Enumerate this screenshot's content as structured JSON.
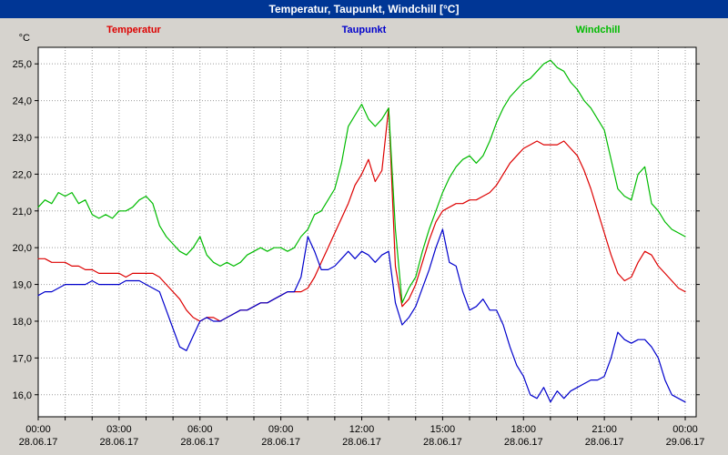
{
  "window": {
    "title": "Temperatur, Taupunkt, Windchill [°C]"
  },
  "legend": [
    {
      "label": "Temperatur",
      "color": "#dd0000"
    },
    {
      "label": "Taupunkt",
      "color": "#0000cc"
    },
    {
      "label": "Windchill",
      "color": "#00bb00"
    }
  ],
  "chart_data": {
    "type": "line",
    "title": "Temperatur, Taupunkt, Windchill [°C]",
    "y_unit": "°C",
    "ylim": [
      15.4,
      25.45
    ],
    "grid": "dotted, every 1 °C horizontal and every 1 hour vertical",
    "x_step_hours": 0.25,
    "x_range_hours": [
      0,
      24
    ],
    "y_ticks": [
      {
        "value": 16,
        "label": "16,0"
      },
      {
        "value": 17,
        "label": "17,0"
      },
      {
        "value": 18,
        "label": "18,0"
      },
      {
        "value": 19,
        "label": "19,0"
      },
      {
        "value": 20,
        "label": "20,0"
      },
      {
        "value": 21,
        "label": "21,0"
      },
      {
        "value": 22,
        "label": "22,0"
      },
      {
        "value": 23,
        "label": "23,0"
      },
      {
        "value": 24,
        "label": "24,0"
      },
      {
        "value": 25,
        "label": "25,0"
      }
    ],
    "x_ticks": [
      {
        "hour": 0,
        "time": "00:00",
        "date": "28.06.17"
      },
      {
        "hour": 3,
        "time": "03:00",
        "date": "28.06.17"
      },
      {
        "hour": 6,
        "time": "06:00",
        "date": "28.06.17"
      },
      {
        "hour": 9,
        "time": "09:00",
        "date": "28.06.17"
      },
      {
        "hour": 12,
        "time": "12:00",
        "date": "28.06.17"
      },
      {
        "hour": 15,
        "time": "15:00",
        "date": "28.06.17"
      },
      {
        "hour": 18,
        "time": "18:00",
        "date": "28.06.17"
      },
      {
        "hour": 21,
        "time": "21:00",
        "date": "28.06.17"
      },
      {
        "hour": 24,
        "time": "00:00",
        "date": "29.06.17"
      }
    ],
    "series": [
      {
        "name": "Temperatur",
        "color": "#dd0000",
        "values": [
          19.7,
          19.7,
          19.6,
          19.6,
          19.6,
          19.5,
          19.5,
          19.4,
          19.4,
          19.3,
          19.3,
          19.3,
          19.3,
          19.2,
          19.3,
          19.3,
          19.3,
          19.3,
          19.2,
          19.0,
          18.8,
          18.6,
          18.3,
          18.1,
          18.0,
          18.1,
          18.1,
          18.0,
          18.1,
          18.2,
          18.3,
          18.3,
          18.4,
          18.5,
          18.5,
          18.6,
          18.7,
          18.8,
          18.8,
          18.8,
          18.9,
          19.2,
          19.6,
          20.0,
          20.4,
          20.8,
          21.2,
          21.7,
          22.0,
          22.4,
          21.8,
          22.1,
          23.8,
          19.5,
          18.4,
          18.6,
          19.0,
          19.6,
          20.2,
          20.7,
          21.0,
          21.1,
          21.2,
          21.2,
          21.3,
          21.3,
          21.4,
          21.5,
          21.7,
          22.0,
          22.3,
          22.5,
          22.7,
          22.8,
          22.9,
          22.8,
          22.8,
          22.8,
          22.9,
          22.7,
          22.5,
          22.1,
          21.6,
          21.0,
          20.4,
          19.8,
          19.3,
          19.1,
          19.2,
          19.6,
          19.9,
          19.8,
          19.5,
          19.3,
          19.1,
          18.9,
          18.8
        ]
      },
      {
        "name": "Taupunkt",
        "color": "#0000cc",
        "values": [
          18.7,
          18.8,
          18.8,
          18.9,
          19.0,
          19.0,
          19.0,
          19.0,
          19.1,
          19.0,
          19.0,
          19.0,
          19.0,
          19.1,
          19.1,
          19.1,
          19.0,
          18.9,
          18.8,
          18.3,
          17.8,
          17.3,
          17.2,
          17.6,
          18.0,
          18.1,
          18.0,
          18.0,
          18.1,
          18.2,
          18.3,
          18.3,
          18.4,
          18.5,
          18.5,
          18.6,
          18.7,
          18.8,
          18.8,
          19.2,
          20.3,
          19.9,
          19.4,
          19.4,
          19.5,
          19.7,
          19.9,
          19.7,
          19.9,
          19.8,
          19.6,
          19.8,
          19.9,
          18.5,
          17.9,
          18.1,
          18.4,
          18.9,
          19.4,
          20.0,
          20.5,
          19.6,
          19.5,
          18.8,
          18.3,
          18.4,
          18.6,
          18.3,
          18.3,
          17.9,
          17.3,
          16.8,
          16.5,
          16.0,
          15.9,
          16.2,
          15.8,
          16.1,
          15.9,
          16.1,
          16.2,
          16.3,
          16.4,
          16.4,
          16.5,
          17.0,
          17.7,
          17.5,
          17.4,
          17.5,
          17.5,
          17.3,
          17.0,
          16.4,
          16.0,
          15.9,
          15.8
        ]
      },
      {
        "name": "Windchill",
        "color": "#00bb00",
        "values": [
          21.1,
          21.3,
          21.2,
          21.5,
          21.4,
          21.5,
          21.2,
          21.3,
          20.9,
          20.8,
          20.9,
          20.8,
          21.0,
          21.0,
          21.1,
          21.3,
          21.4,
          21.2,
          20.6,
          20.3,
          20.1,
          19.9,
          19.8,
          20.0,
          20.3,
          19.8,
          19.6,
          19.5,
          19.6,
          19.5,
          19.6,
          19.8,
          19.9,
          20.0,
          19.9,
          20.0,
          20.0,
          19.9,
          20.0,
          20.3,
          20.5,
          20.9,
          21.0,
          21.3,
          21.6,
          22.3,
          23.3,
          23.6,
          23.9,
          23.5,
          23.3,
          23.5,
          23.8,
          20.5,
          18.5,
          18.9,
          19.2,
          19.9,
          20.5,
          21.0,
          21.5,
          21.9,
          22.2,
          22.4,
          22.5,
          22.3,
          22.5,
          22.9,
          23.4,
          23.8,
          24.1,
          24.3,
          24.5,
          24.6,
          24.8,
          25.0,
          25.1,
          24.9,
          24.8,
          24.5,
          24.3,
          24.0,
          23.8,
          23.5,
          23.2,
          22.4,
          21.6,
          21.4,
          21.3,
          22.0,
          22.2,
          21.2,
          21.0,
          20.7,
          20.5,
          20.4,
          20.3
        ]
      }
    ]
  }
}
